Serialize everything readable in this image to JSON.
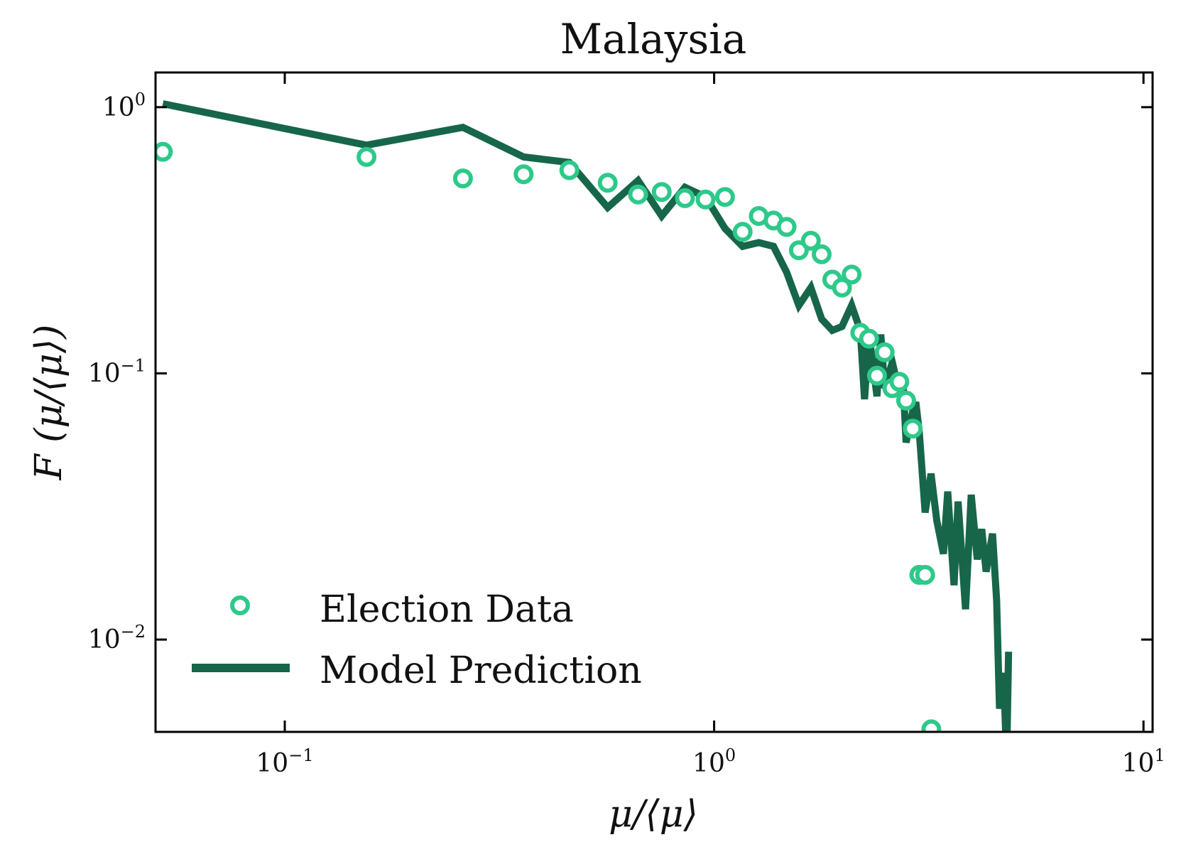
{
  "chart_data": {
    "type": "scatter",
    "title": "Malaysia",
    "xlabel": "μ/⟨μ⟩",
    "ylabel": "F (μ/⟨μ⟩)",
    "xscale": "log",
    "yscale": "log",
    "xlim": [
      0.05,
      10.5
    ],
    "ylim": [
      0.0045,
      1.35
    ],
    "grid": false,
    "legend_position": "lower-left",
    "x_ticks": [
      {
        "value": 0.1,
        "base": "10",
        "exp": "−1"
      },
      {
        "value": 1,
        "base": "10",
        "exp": "0"
      },
      {
        "value": 10,
        "base": "10",
        "exp": "1"
      }
    ],
    "y_ticks": [
      {
        "value": 1,
        "base": "10",
        "exp": "0"
      },
      {
        "value": 0.1,
        "base": "10",
        "exp": "−1"
      },
      {
        "value": 0.01,
        "base": "10",
        "exp": "−2"
      }
    ],
    "series": [
      {
        "name": "Election Data",
        "kind": "scatter",
        "marker": "open-circle",
        "color": "#2ec98a",
        "x": [
          0.052,
          0.155,
          0.26,
          0.36,
          0.46,
          0.565,
          0.665,
          0.755,
          0.855,
          0.955,
          1.06,
          1.165,
          1.27,
          1.375,
          1.475,
          1.575,
          1.68,
          1.78,
          1.885,
          1.985,
          2.09,
          2.19,
          2.295,
          2.395,
          2.495,
          2.6,
          2.7,
          2.8,
          2.9,
          3.005,
          3.1,
          3.205
        ],
        "y": [
          0.68,
          0.65,
          0.54,
          0.56,
          0.58,
          0.52,
          0.47,
          0.48,
          0.455,
          0.45,
          0.46,
          0.34,
          0.39,
          0.375,
          0.355,
          0.29,
          0.315,
          0.28,
          0.225,
          0.21,
          0.235,
          0.142,
          0.135,
          0.098,
          0.12,
          0.088,
          0.093,
          0.079,
          0.062,
          0.0175,
          0.0175,
          0.0046
        ]
      },
      {
        "name": "Model Prediction",
        "kind": "line",
        "color": "#17664a",
        "x": [
          0.052,
          0.155,
          0.26,
          0.36,
          0.46,
          0.565,
          0.665,
          0.755,
          0.855,
          0.955,
          1.06,
          1.165,
          1.27,
          1.375,
          1.475,
          1.575,
          1.68,
          1.78,
          1.885,
          1.985,
          2.09,
          2.19,
          2.24,
          2.295,
          2.395,
          2.445,
          2.495,
          2.6,
          2.7,
          2.75,
          2.8,
          2.9,
          2.95,
          3.005,
          3.1,
          3.2,
          3.3,
          3.42,
          3.5,
          3.62,
          3.7,
          3.85,
          3.97,
          4.1,
          4.2,
          4.3,
          4.45,
          4.55,
          4.62,
          4.72,
          4.8,
          4.85
        ],
        "y": [
          1.03,
          0.72,
          0.84,
          0.65,
          0.62,
          0.42,
          0.53,
          0.39,
          0.5,
          0.46,
          0.35,
          0.3,
          0.31,
          0.3,
          0.24,
          0.18,
          0.21,
          0.16,
          0.145,
          0.15,
          0.18,
          0.145,
          0.08,
          0.14,
          0.082,
          0.14,
          0.088,
          0.11,
          0.085,
          0.098,
          0.055,
          0.072,
          0.078,
          0.06,
          0.03,
          0.042,
          0.028,
          0.021,
          0.036,
          0.016,
          0.033,
          0.013,
          0.035,
          0.02,
          0.026,
          0.018,
          0.025,
          0.014,
          0.0055,
          0.0075,
          0.0035,
          0.009
        ]
      }
    ]
  }
}
